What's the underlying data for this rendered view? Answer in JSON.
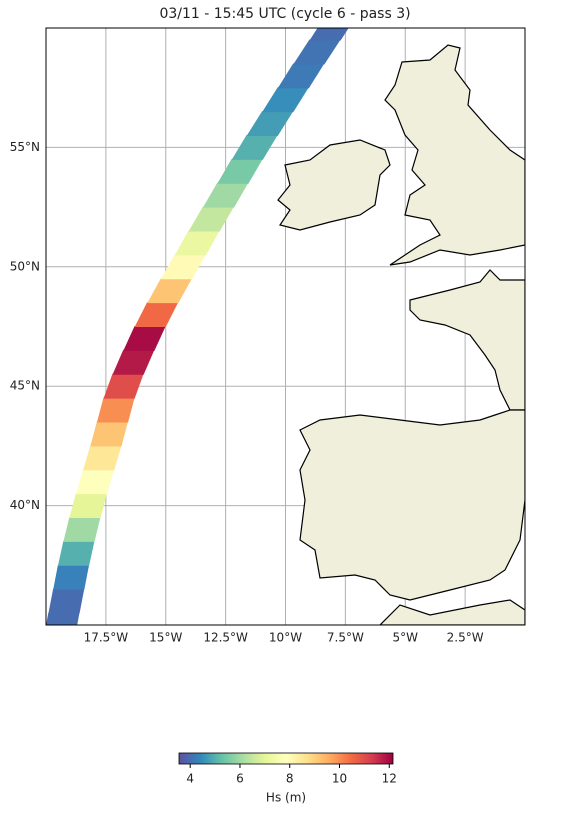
{
  "chart_data": {
    "type": "map",
    "title": "03/11 - 15:45 UTC (cycle 6 - pass 3)",
    "xlim": [
      -20,
      0
    ],
    "ylim": [
      35,
      60
    ],
    "xticks": [
      {
        "value": -17.5,
        "label": "17.5°W"
      },
      {
        "value": -15,
        "label": "15°W"
      },
      {
        "value": -12.5,
        "label": "12.5°W"
      },
      {
        "value": -10,
        "label": "10°W"
      },
      {
        "value": -7.5,
        "label": "7.5°W"
      },
      {
        "value": -5,
        "label": "5°W"
      },
      {
        "value": -2.5,
        "label": "2.5°W"
      }
    ],
    "yticks": [
      {
        "value": 40,
        "label": "40°N"
      },
      {
        "value": 45,
        "label": "45°N"
      },
      {
        "value": 50,
        "label": "50°N"
      },
      {
        "value": 55,
        "label": "55°N"
      }
    ],
    "grid": true,
    "track": {
      "lat": [
        35,
        36,
        37,
        38,
        39,
        40,
        41,
        42,
        43,
        44,
        45,
        46,
        47,
        48,
        49,
        50,
        51,
        52,
        53,
        54,
        55,
        56,
        57,
        58,
        59,
        60
      ],
      "lon": [
        -19.35,
        -19.15,
        -18.95,
        -18.75,
        -18.5,
        -18.25,
        -17.95,
        -17.65,
        -17.35,
        -17.1,
        -16.8,
        -16.35,
        -15.9,
        -15.4,
        -14.85,
        -14.25,
        -13.7,
        -13.1,
        -12.5,
        -11.9,
        -11.3,
        -10.65,
        -10.0,
        -9.35,
        -8.7,
        -8.0
      ],
      "hs": [
        4,
        4,
        4.3,
        5,
        6,
        7,
        7.8,
        8.5,
        9.2,
        10,
        11,
        11.8,
        12,
        10.5,
        9.2,
        8,
        7.2,
        6.5,
        6,
        5.5,
        5,
        4.7,
        4.5,
        4.2,
        4.1,
        4
      ]
    },
    "colorbar": {
      "label": "Hs (m)",
      "clim": [
        3.55,
        12.15
      ],
      "ticks": [
        4,
        6,
        8,
        10,
        12
      ],
      "colormap": [
        "#5e4fa2",
        "#3288bd",
        "#66c2a5",
        "#abdda4",
        "#e6f598",
        "#ffffbf",
        "#fee08b",
        "#fdae61",
        "#f46d43",
        "#d53e4f",
        "#9e0142"
      ]
    }
  }
}
